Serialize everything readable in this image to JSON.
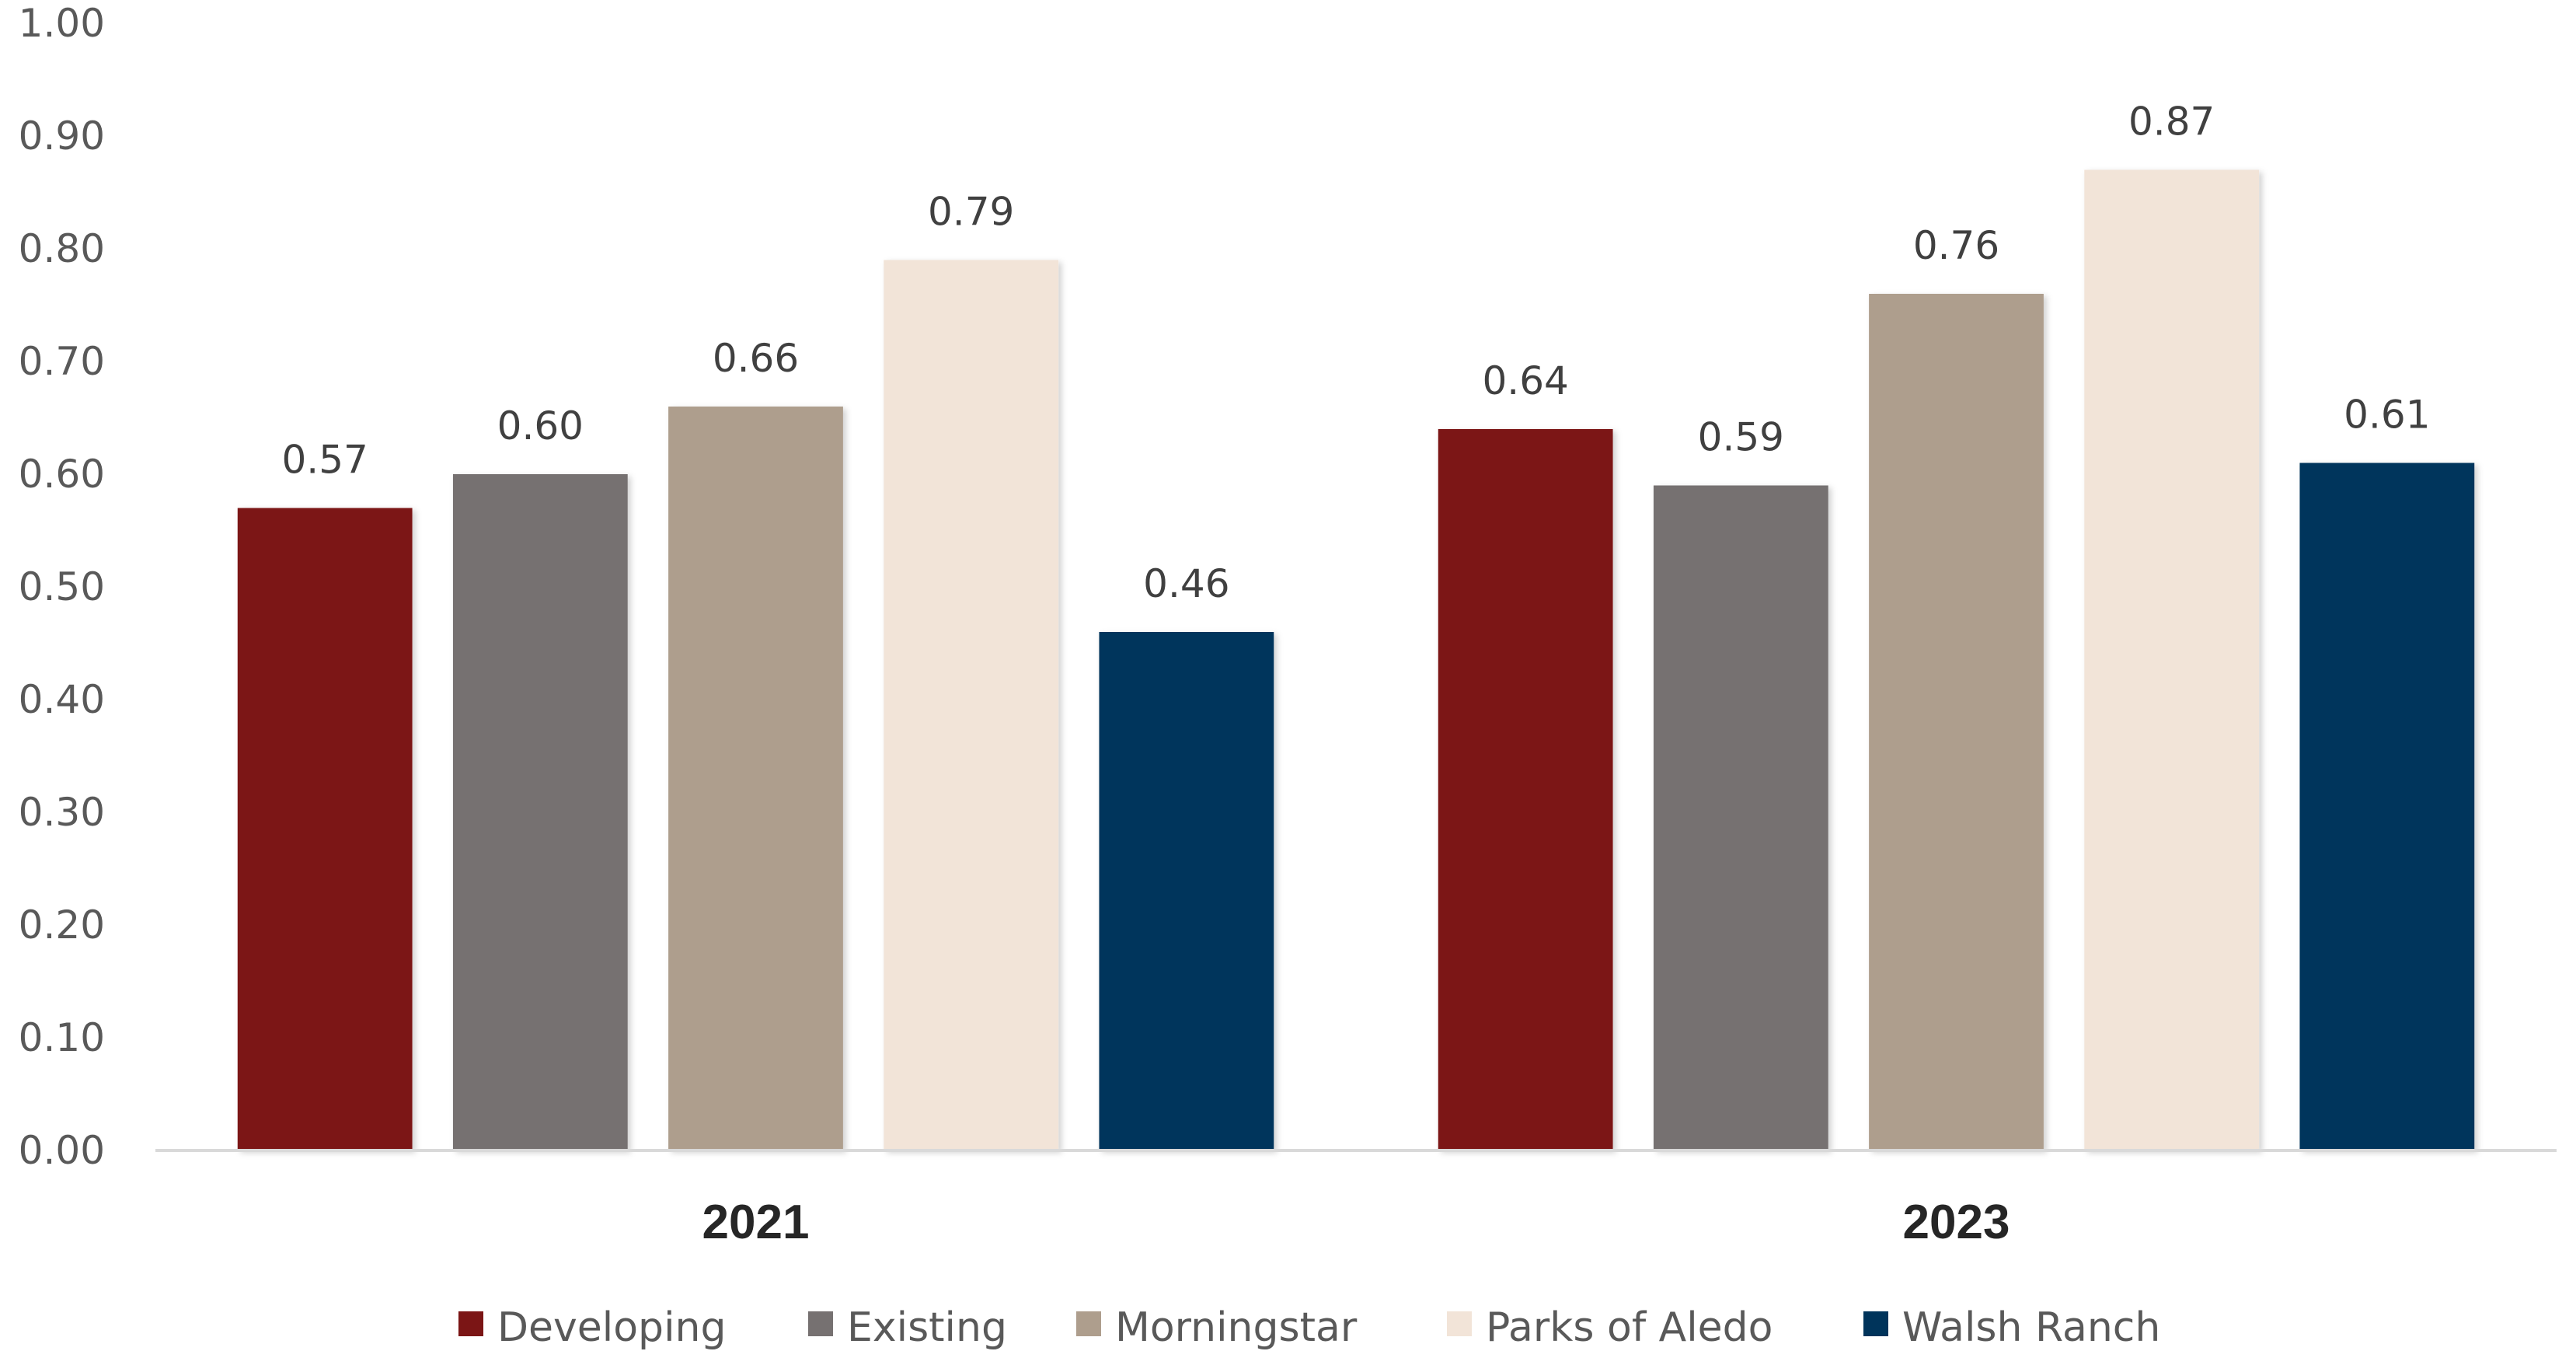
{
  "chart_data": {
    "type": "bar",
    "title": "",
    "xlabel": "",
    "ylabel": "",
    "categories": [
      "2021",
      "2023"
    ],
    "series": [
      {
        "name": "Developing",
        "values": [
          0.57,
          0.64
        ],
        "value_labels": [
          "0.57",
          "0.64"
        ],
        "color": "#7B1515"
      },
      {
        "name": "Existing",
        "values": [
          0.6,
          0.59
        ],
        "value_labels": [
          "0.60",
          "0.59"
        ],
        "color": "#767171"
      },
      {
        "name": "Morningstar",
        "values": [
          0.66,
          0.76
        ],
        "value_labels": [
          "0.66",
          "0.76"
        ],
        "color": "#AE9E8D"
      },
      {
        "name": "Parks of Aledo",
        "values": [
          0.79,
          0.87
        ],
        "value_labels": [
          "0.79",
          "0.87"
        ],
        "color": "#F2E4D8"
      },
      {
        "name": "Walsh Ranch",
        "values": [
          0.46,
          0.61
        ],
        "value_labels": [
          "0.46",
          "0.61"
        ],
        "color": "#00345B"
      }
    ],
    "ylim": [
      0,
      1.0
    ],
    "yticks": [
      "0.00",
      "0.10",
      "0.20",
      "0.30",
      "0.40",
      "0.50",
      "0.60",
      "0.70",
      "0.80",
      "0.90",
      "1.00"
    ],
    "grid": false,
    "legend_position": "bottom",
    "data_labels": true
  }
}
